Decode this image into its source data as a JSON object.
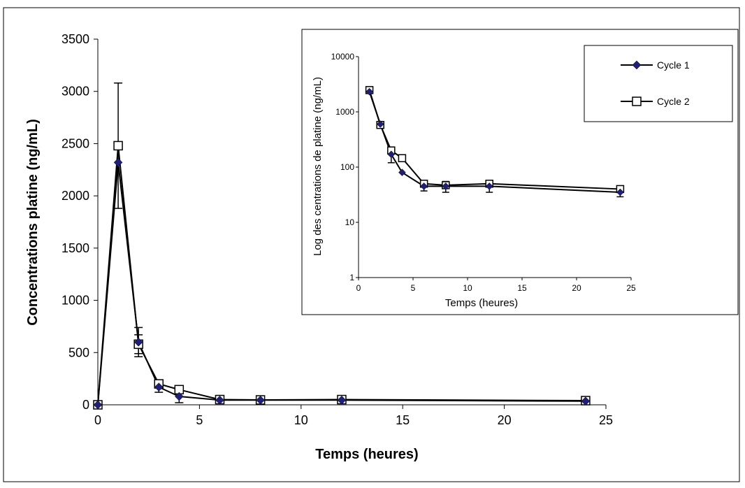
{
  "chart_data": [
    {
      "type": "line",
      "xlabel": "Temps (heures)",
      "ylabel": "Concentrations platine (ng/mL)",
      "xlim": [
        0,
        25
      ],
      "ylim": [
        0,
        3500
      ],
      "x_ticks": [
        "0",
        "5",
        "10",
        "15",
        "20",
        "25"
      ],
      "y_ticks": [
        "0",
        "500",
        "1000",
        "1500",
        "2000",
        "2500",
        "3000",
        "3500"
      ],
      "grid": false,
      "series": [
        {
          "name": "Cycle 1",
          "marker": "diamond-filled",
          "color": "#1f1f7a",
          "x": [
            0,
            1,
            2,
            3,
            4,
            6,
            8,
            12,
            24
          ],
          "y": [
            0,
            2320,
            600,
            170,
            80,
            45,
            45,
            45,
            35
          ],
          "err": [
            0,
            0,
            140,
            50,
            60,
            10,
            10,
            10,
            10
          ]
        },
        {
          "name": "Cycle 2",
          "marker": "square-open",
          "color": "#000000",
          "x": [
            0,
            1,
            2,
            3,
            4,
            6,
            8,
            12,
            24
          ],
          "y": [
            0,
            2480,
            580,
            200,
            145,
            50,
            47,
            50,
            40
          ],
          "err": [
            0,
            600,
            90,
            30,
            0,
            10,
            10,
            10,
            10
          ]
        }
      ]
    },
    {
      "type": "line",
      "xlabel": "Temps (heures)",
      "ylabel": "Log des centrations de platine (ng/mL)",
      "yscale": "log",
      "xlim": [
        0,
        25
      ],
      "ylim": [
        1,
        10000
      ],
      "x_ticks": [
        "0",
        "5",
        "10",
        "15",
        "20",
        "25"
      ],
      "y_ticks": [
        "1",
        "10",
        "100",
        "1000",
        "10000"
      ],
      "legend_position": "top-right",
      "series": [
        {
          "name": "Cycle 1",
          "marker": "diamond-filled",
          "color": "#1f1f7a",
          "x": [
            1,
            2,
            3,
            4,
            6,
            8,
            12,
            24
          ],
          "y": [
            2320,
            600,
            170,
            80,
            45,
            45,
            45,
            35
          ],
          "err": [
            0,
            0,
            50,
            0,
            8,
            10,
            10,
            6
          ]
        },
        {
          "name": "Cycle 2",
          "marker": "square-open",
          "color": "#000000",
          "x": [
            1,
            2,
            3,
            4,
            6,
            8,
            12,
            24
          ],
          "y": [
            2480,
            580,
            200,
            145,
            50,
            47,
            50,
            40
          ],
          "err": [
            0,
            0,
            0,
            0,
            0,
            0,
            0,
            0
          ]
        }
      ]
    }
  ]
}
